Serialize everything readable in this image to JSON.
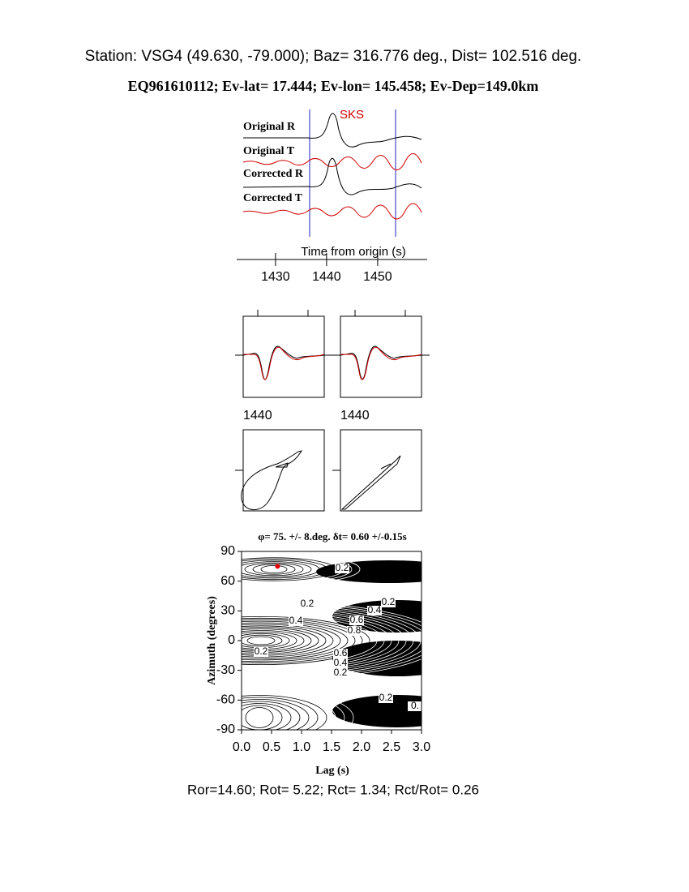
{
  "header": {
    "station": "Station: VSG4 (49.630,  -79.000); Baz=  316.776 deg., Dist=  102.516 deg.",
    "event": "EQ961610112; Ev-lat=  17.444; Ev-lon= 145.458; Ev-Dep=149.0km"
  },
  "waveforms": {
    "labels": [
      "Original R",
      "Original T",
      "Corrected R",
      "Corrected T"
    ],
    "phase": "SKS",
    "xlabel": "Time from origin (s)",
    "xlim": [
      1422.4,
      1459.7
    ],
    "xticks": [
      1430,
      1440,
      1450
    ]
  },
  "particle_motion": {
    "time_labels": [
      1440,
      1440
    ]
  },
  "grid_search": {
    "type": "contour",
    "title": "φ= 75. +/- 8.deg.  δt= 0.60 +/-0.15s",
    "xlabel": "Lag (s)",
    "ylabel": "Azimuth (degrees)",
    "xlim": [
      0,
      3
    ],
    "ylim": [
      -90,
      90
    ],
    "xticks": [
      {
        "value": 0,
        "label": "0.0"
      },
      {
        "value": 0.5,
        "label": "0.5"
      },
      {
        "value": 1,
        "label": "1.0"
      },
      {
        "value": 1.5,
        "label": "1.5"
      },
      {
        "value": 2,
        "label": "2.0"
      },
      {
        "value": 2.5,
        "label": "2.5"
      },
      {
        "value": 3,
        "label": "3.0"
      }
    ],
    "yticks": [
      -90,
      -60,
      -30,
      0,
      30,
      60,
      90
    ],
    "best": {
      "x": 0.6,
      "y": 75
    },
    "best_color": "#e00000",
    "contour_labels": [
      "0.2",
      "0.2",
      "0.4",
      "0.2",
      "0.4",
      "0.6",
      "0.8",
      "0.2",
      "0.6",
      "0.4",
      "0.2",
      "0.2",
      "0."
    ]
  },
  "footer": "Ror=14.60; Rot= 5.22; Rct= 1.34; Rct/Rot= 0.26"
}
